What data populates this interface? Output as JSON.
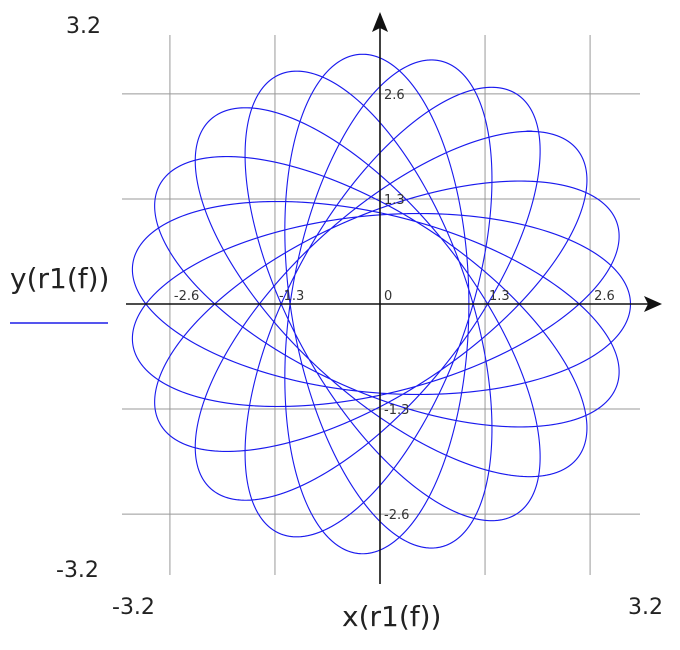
{
  "chart_data": {
    "type": "line",
    "title": "",
    "xlabel": "x(r1(f))",
    "ylabel": "y(r1(f))",
    "xlim": [
      -3.2,
      3.2
    ],
    "ylim": [
      -3.2,
      3.2
    ],
    "corner_labels": {
      "x_min": "-3.2",
      "x_max": "3.2",
      "y_min": "-3.2",
      "y_max": "3.2"
    },
    "x_ticks": [
      {
        "value": -2.6,
        "label": "-2.6"
      },
      {
        "value": -1.3,
        "label": "-1.3"
      },
      {
        "value": 0,
        "label": "0"
      },
      {
        "value": 1.3,
        "label": "1.3"
      },
      {
        "value": 2.6,
        "label": "2.6"
      }
    ],
    "y_ticks": [
      {
        "value": -2.6,
        "label": "-2.6"
      },
      {
        "value": -1.3,
        "label": "-1.3"
      },
      {
        "value": 1.3,
        "label": "1.3"
      },
      {
        "value": 2.6,
        "label": "2.6"
      }
    ],
    "grid": true,
    "series": [
      {
        "name": "y(r1(f))",
        "color": "#1a1aee",
        "curve": "hypotrochoid-rosette",
        "outer_radius": 3.1,
        "inner_radius": 1.1,
        "frequency_ratio": 0.9,
        "t_max": 400
      }
    ],
    "legend": {
      "label": "y(r1(f))",
      "placement": "left",
      "color": "#5555ee"
    }
  }
}
